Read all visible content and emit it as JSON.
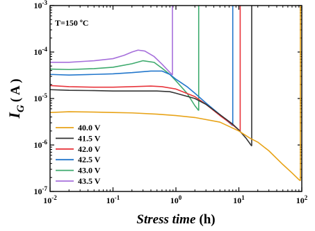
{
  "chart_data": {
    "type": "line",
    "title": "",
    "annotation": "T=150 ºC",
    "xlabel_main": "Stress time",
    "xlabel_unit": "(h)",
    "ylabel_main": "I",
    "ylabel_sub": "G",
    "ylabel_unit": "( A )",
    "xscale": "log",
    "yscale": "log",
    "xlim": [
      0.01,
      100
    ],
    "ylim": [
      1e-07,
      0.001
    ],
    "x_ticks": [
      {
        "value": 0.01,
        "base": "10",
        "exp": "-2"
      },
      {
        "value": 0.1,
        "base": "10",
        "exp": "-1"
      },
      {
        "value": 1,
        "base": "10",
        "exp": "0"
      },
      {
        "value": 10,
        "base": "10",
        "exp": "1"
      },
      {
        "value": 100,
        "base": "10",
        "exp": "2"
      }
    ],
    "y_ticks": [
      {
        "value": 1e-07,
        "base": "10",
        "exp": "-7"
      },
      {
        "value": 1e-06,
        "base": "10",
        "exp": "-6"
      },
      {
        "value": 1e-05,
        "base": "10",
        "exp": "-5"
      },
      {
        "value": 0.0001,
        "base": "10",
        "exp": "-4"
      },
      {
        "value": 0.001,
        "base": "10",
        "exp": "-3"
      }
    ],
    "grid": false,
    "legend_position": "bottom-left",
    "series": [
      {
        "name": "40.0 V",
        "color": "#E8A317",
        "breakdown_time": 95,
        "points": [
          [
            0.01,
            5e-06
          ],
          [
            0.02,
            5.2e-06
          ],
          [
            0.05,
            5.1e-06
          ],
          [
            0.1,
            5e-06
          ],
          [
            0.2,
            4.9e-06
          ],
          [
            0.5,
            4.6e-06
          ],
          [
            1,
            4.3e-06
          ],
          [
            2,
            3.9e-06
          ],
          [
            5,
            3.1e-06
          ],
          [
            10,
            2e-06
          ],
          [
            15,
            1.4e-06
          ],
          [
            20,
            1.15e-06
          ],
          [
            30,
            7.5e-07
          ],
          [
            50,
            3.8e-07
          ],
          [
            70,
            2.5e-07
          ],
          [
            90,
            1.8e-07
          ],
          [
            95,
            1.7e-07
          ]
        ]
      },
      {
        "name": "41.5 V",
        "color": "#333333",
        "breakdown_time": 16,
        "points": [
          [
            0.01,
            1.55e-05
          ],
          [
            0.02,
            1.5e-05
          ],
          [
            0.05,
            1.48e-05
          ],
          [
            0.1,
            1.45e-05
          ],
          [
            0.2,
            1.45e-05
          ],
          [
            0.5,
            1.45e-05
          ],
          [
            0.8,
            1.4e-05
          ],
          [
            1,
            1.3e-05
          ],
          [
            2,
            1e-05
          ],
          [
            3,
            7.5e-06
          ],
          [
            5,
            4.5e-06
          ],
          [
            8,
            2.8e-06
          ],
          [
            10,
            2.1e-06
          ],
          [
            13,
            1.4e-06
          ],
          [
            16,
            9.5e-07
          ]
        ]
      },
      {
        "name": "42.0 V",
        "color": "#E8343B",
        "breakdown_time": 10.5,
        "points": [
          [
            0.01,
            1.9e-05
          ],
          [
            0.02,
            1.8e-05
          ],
          [
            0.05,
            1.75e-05
          ],
          [
            0.1,
            1.75e-05
          ],
          [
            0.2,
            1.8e-05
          ],
          [
            0.4,
            1.85e-05
          ],
          [
            0.6,
            1.8e-05
          ],
          [
            1,
            1.6e-05
          ],
          [
            2,
            1.1e-05
          ],
          [
            3,
            7.5e-06
          ],
          [
            5,
            4.3e-06
          ],
          [
            8,
            2.7e-06
          ],
          [
            10.5,
            2e-06
          ]
        ]
      },
      {
        "name": "42.5 V",
        "color": "#2277CC",
        "breakdown_time": 8,
        "points": [
          [
            0.01,
            3.3e-05
          ],
          [
            0.02,
            3.2e-05
          ],
          [
            0.05,
            3.3e-05
          ],
          [
            0.1,
            3.4e-05
          ],
          [
            0.2,
            3.6e-05
          ],
          [
            0.4,
            3.9e-05
          ],
          [
            0.6,
            3.9e-05
          ],
          [
            0.8,
            3.3e-05
          ],
          [
            1,
            2.6e-05
          ],
          [
            1.5,
            1.8e-05
          ],
          [
            2,
            1.3e-05
          ],
          [
            3,
            8e-06
          ],
          [
            5,
            4.5e-06
          ],
          [
            8,
            2.6e-06
          ]
        ]
      },
      {
        "name": "43.0 V",
        "color": "#3DAA6D",
        "breakdown_time": 2.3,
        "points": [
          [
            0.01,
            4.3e-05
          ],
          [
            0.02,
            4.2e-05
          ],
          [
            0.05,
            4.4e-05
          ],
          [
            0.1,
            4.7e-05
          ],
          [
            0.2,
            5.6e-05
          ],
          [
            0.3,
            6.5e-05
          ],
          [
            0.45,
            6e-05
          ],
          [
            0.6,
            4.5e-05
          ],
          [
            0.8,
            3.3e-05
          ],
          [
            1,
            2.4e-05
          ],
          [
            1.5,
            1.3e-05
          ],
          [
            2,
            7e-06
          ],
          [
            2.3,
            5.5e-06
          ]
        ]
      },
      {
        "name": "43.5 V",
        "color": "#A66FDB",
        "breakdown_time": 0.88,
        "points": [
          [
            0.01,
            6e-05
          ],
          [
            0.02,
            6e-05
          ],
          [
            0.05,
            6.5e-05
          ],
          [
            0.1,
            7.2e-05
          ],
          [
            0.15,
            8.5e-05
          ],
          [
            0.2,
            0.0001
          ],
          [
            0.25,
            0.00011
          ],
          [
            0.32,
            0.000105
          ],
          [
            0.45,
            8e-05
          ],
          [
            0.6,
            5.5e-05
          ],
          [
            0.75,
            4e-05
          ],
          [
            0.88,
            3.2e-05
          ]
        ]
      }
    ]
  }
}
